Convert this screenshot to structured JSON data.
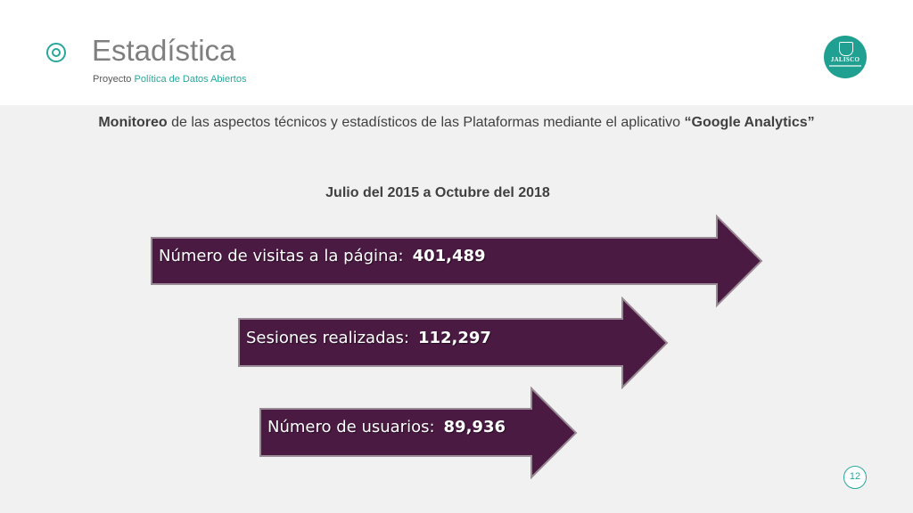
{
  "header": {
    "title": "Estadística",
    "subtitle_prefix": "Proyecto",
    "subtitle_accent": "Política de Datos Abiertos",
    "logo_text": "JALISCO"
  },
  "intro": {
    "bold_start": "Monitoreo",
    "middle": " de las aspectos técnicos y estadísticos de las Plataformas mediante el aplicativo ",
    "bold_end": "“Google Analytics”"
  },
  "period": "Julio del 2015 a Octubre del 2018",
  "stats": [
    {
      "label": "Número de visitas a la página:",
      "value": "401,489"
    },
    {
      "label": "Sesiones realizadas:",
      "value": "112,297"
    },
    {
      "label": "Número de usuarios:",
      "value": "89,936"
    }
  ],
  "page_number": "12",
  "colors": {
    "accent": "#2aa79b",
    "arrow_fill": "#4b1a43",
    "arrow_border": "#9a8a95"
  }
}
